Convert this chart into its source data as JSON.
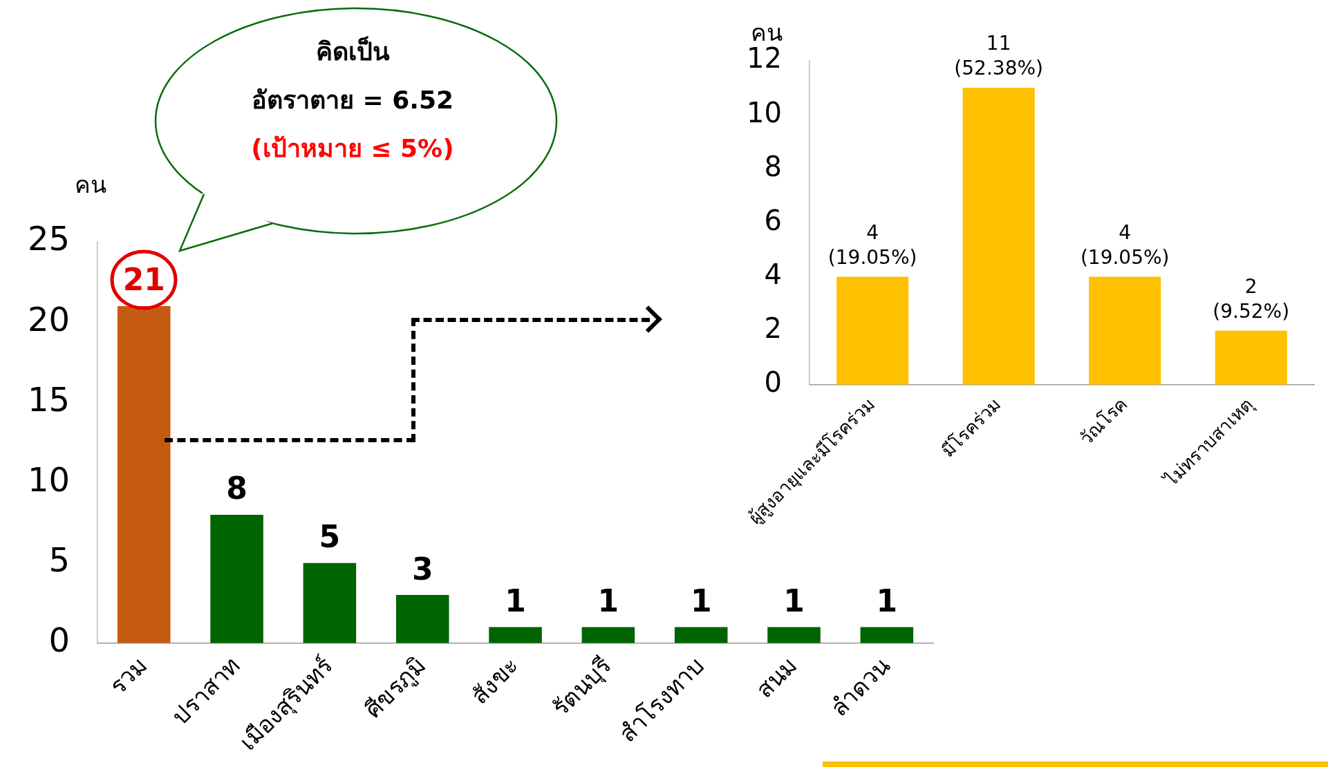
{
  "chart_data": [
    {
      "type": "bar",
      "ylabel": "คน",
      "categories": [
        "รวม",
        "ปราสาท",
        "เมืองสุรินทร์",
        "ศีขรภูมิ",
        "สังขะ",
        "รัตนบุรี",
        "สำโรงทาบ",
        "สนม",
        "ลำดวน"
      ],
      "values": [
        21,
        8,
        5,
        3,
        1,
        1,
        1,
        1,
        1
      ],
      "colors": [
        "#c55a11",
        "#006400",
        "#006400",
        "#006400",
        "#006400",
        "#006400",
        "#006400",
        "#006400",
        "#006400"
      ],
      "ylim": [
        0,
        25
      ],
      "yticks": [
        0,
        5,
        10,
        15,
        20,
        25
      ],
      "grid": false,
      "legend": false,
      "data_labels": true,
      "annotations": [
        "คิดเป็น",
        "อัตราตาย = 6.52",
        "(เป้าหมาย ≤ 5%)"
      ]
    },
    {
      "type": "bar",
      "ylabel": "คน",
      "categories": [
        "ผู้สูงอายุและมีโรคร่วม",
        "มีโรคร่วม",
        "วัณโรค",
        "ไม่ทราบสาเหตุ"
      ],
      "values": [
        4,
        11,
        4,
        2
      ],
      "color": "#ffc000",
      "value_labels": [
        "4 (19.05%)",
        "11 (52.38%)",
        "4 (19.05%)",
        "2 (9.52%)"
      ],
      "ylim": [
        0,
        12
      ],
      "yticks": [
        0,
        2,
        4,
        6,
        8,
        10,
        12
      ],
      "grid": false,
      "legend": false
    }
  ]
}
